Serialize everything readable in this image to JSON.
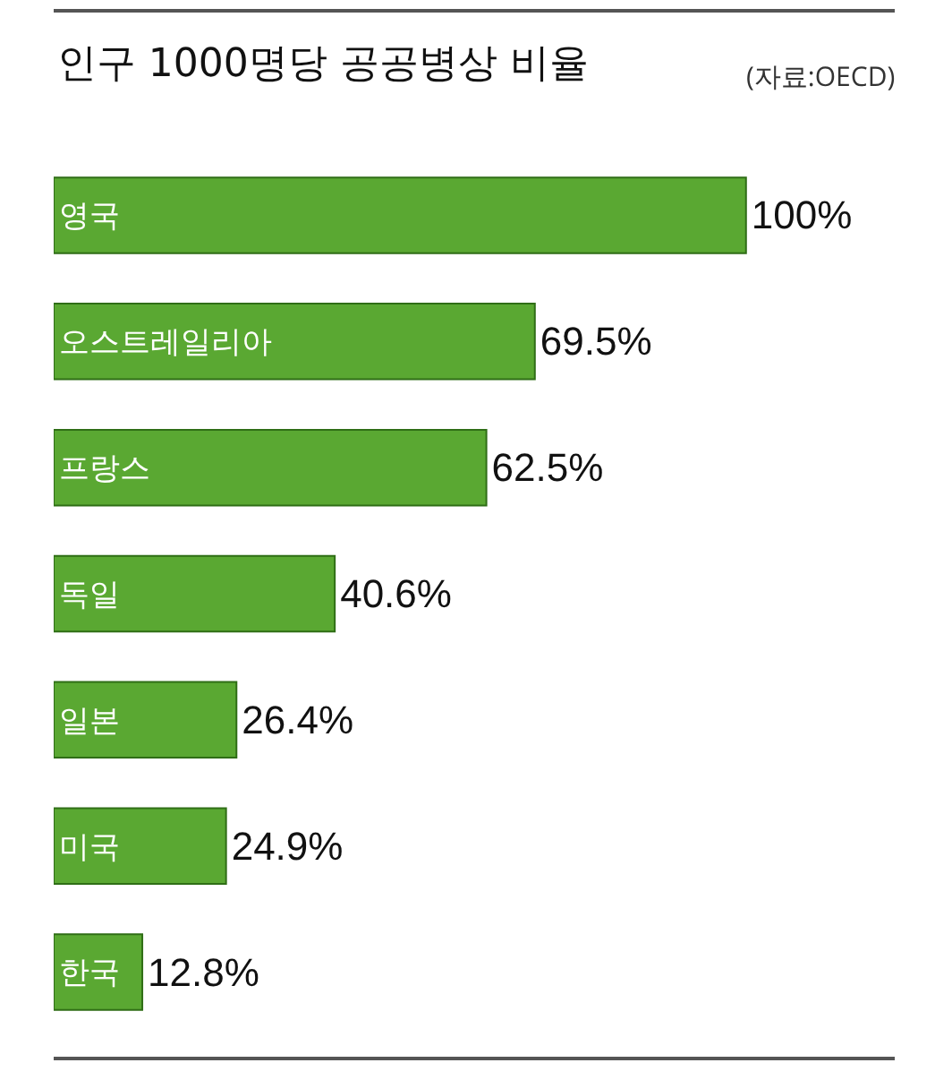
{
  "chart_data": {
    "type": "bar",
    "orientation": "horizontal",
    "title": "인구 1000명당 공공병상 비율",
    "annotations": [
      "(자료:OECD)"
    ],
    "categories": [
      "영국",
      "오스트레일리아",
      "프랑스",
      "독일",
      "일본",
      "미국",
      "한국"
    ],
    "values": [
      100,
      69.5,
      62.5,
      40.6,
      26.4,
      24.9,
      12.8
    ],
    "value_labels": [
      "100%",
      "69.5%",
      "62.5%",
      "40.6%",
      "26.4%",
      "24.9%",
      "12.8%"
    ],
    "color": "#5aa832"
  }
}
